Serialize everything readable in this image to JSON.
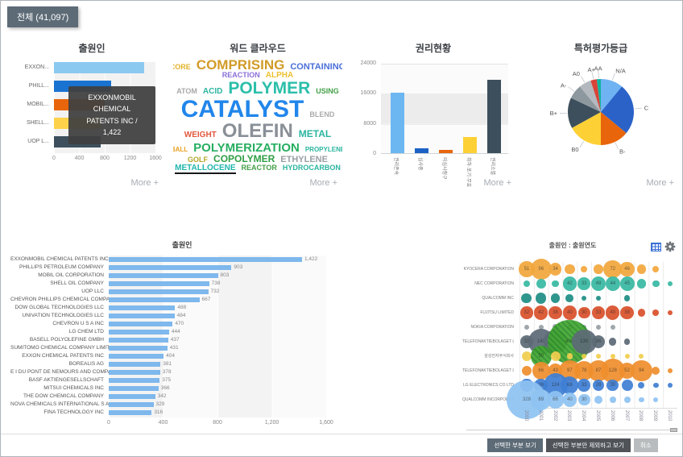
{
  "tab_label": "전체 (41,097)",
  "more_label": "More +",
  "tooltip_lines": [
    "EXXONMOBIL",
    "CHEMICAL",
    "PATENTS INC /",
    "1,422"
  ],
  "buttons": [
    "선택한 부분 보기",
    "선택한 부분만 제외하고 보기",
    "취소"
  ],
  "icons": {
    "table": "table-icon",
    "gear": "gear-icon"
  },
  "word_cloud": {
    "title": "워드 클라우드",
    "lines": [
      [
        {
          "text": "CORE",
          "size": 9,
          "color": "#e3b229"
        },
        {
          "text": "COMPRISING",
          "size": 17,
          "color": "#d29b28"
        },
        {
          "text": "CONTAINING",
          "size": 11,
          "color": "#4a6fd8"
        }
      ],
      [
        {
          "text": "REACTION",
          "size": 9,
          "color": "#8a6fd8"
        },
        {
          "text": "ALPHA",
          "size": 10,
          "color": "#eec131"
        }
      ],
      [
        {
          "text": "ATOM",
          "size": 9,
          "color": "#a8a8a8"
        },
        {
          "text": "ACID",
          "size": 10,
          "color": "#2bb5a0"
        },
        {
          "text": "POLYMER",
          "size": 21,
          "color": "#2bbfa9"
        },
        {
          "text": "USING",
          "size": 9,
          "color": "#43a047"
        }
      ],
      [
        {
          "text": "CATALYST",
          "size": 30,
          "color": "#2186eb"
        },
        {
          "text": "BLEND",
          "size": 9,
          "color": "#ababab"
        }
      ],
      [
        {
          "text": "WEIGHT",
          "size": 10,
          "color": "#e2573d"
        },
        {
          "text": "OLEFIN",
          "size": 24,
          "color": "#8a9097"
        },
        {
          "text": "METAL",
          "size": 12,
          "color": "#2bb5a0"
        }
      ],
      [
        {
          "text": "BALL",
          "size": 8,
          "color": "#e8a020"
        },
        {
          "text": "POLYMERIZATION",
          "size": 15,
          "color": "#27ae60"
        },
        {
          "text": "PROPYLENE",
          "size": 8,
          "color": "#2bb5a0"
        }
      ],
      [
        {
          "text": "GOLF",
          "size": 9,
          "color": "#b5a52a"
        },
        {
          "text": "COPOLYMER",
          "size": 12,
          "color": "#2e9e44"
        },
        {
          "text": "ETHYLENE",
          "size": 11,
          "color": "#9aa0a6"
        }
      ],
      [
        {
          "text": "METALLOCENE",
          "size": 10,
          "color": "#1fb5ad",
          "underline": true
        },
        {
          "text": "REACTOR",
          "size": 9,
          "color": "#43a047"
        },
        {
          "text": "HYDROCARBON",
          "size": 9,
          "color": "#2bb5a0"
        }
      ]
    ]
  },
  "chart_data": [
    {
      "id": "applicant_mini",
      "type": "bar",
      "orientation": "horizontal",
      "title": "출원인",
      "categories": [
        "EXXON...",
        "PHILL...",
        "MOBIL...",
        "SHELL...",
        "UOP L..."
      ],
      "values": [
        1422,
        903,
        803,
        738,
        732
      ],
      "colors": [
        "#8cc9f0",
        "#1a73d1",
        "#e8650c",
        "#fdd24a",
        "#3d4f5c"
      ],
      "xticks": [
        "0",
        "400",
        "800",
        "1200",
        "1600"
      ],
      "xlim": [
        0,
        1600
      ],
      "grid": true
    },
    {
      "id": "rights",
      "type": "bar",
      "orientation": "vertical",
      "title": "권리현황",
      "categories": [
        "권리존속",
        "심사중",
        "미심사청구",
        "취하·포기·무효",
        "권리소멸"
      ],
      "values": [
        16000,
        1200,
        900,
        4300,
        19600
      ],
      "colors": [
        "#6cb6f2",
        "#1b62c4",
        "#e8650c",
        "#fdd035",
        "#3d4f5c"
      ],
      "yticks": [
        "0",
        "8000",
        "16000",
        "24000"
      ],
      "ylim": [
        0,
        24000
      ],
      "grid": true
    },
    {
      "id": "grade",
      "type": "pie",
      "title": "특허평가등급",
      "slices": [
        {
          "label": "N/A",
          "value": 11,
          "color": "#6fb3f2"
        },
        {
          "label": "C",
          "value": 25,
          "color": "#2a62c8"
        },
        {
          "label": "B-",
          "value": 14,
          "color": "#e8650c"
        },
        {
          "label": "B0",
          "value": 17,
          "color": "#fdd035"
        },
        {
          "label": "B+",
          "value": 15,
          "color": "#3d4f5c"
        },
        {
          "label": "A-",
          "value": 7,
          "color": "#8d979e"
        },
        {
          "label": "A0",
          "value": 6,
          "color": "#b3b9be"
        },
        {
          "label": "A+",
          "value": 3,
          "color": "#d84338"
        },
        {
          "label": "AA",
          "value": 2,
          "color": "#0db5a0"
        }
      ]
    },
    {
      "id": "applicant_large",
      "type": "bar",
      "orientation": "horizontal",
      "title": "출원인",
      "categories": [
        "EXXONMOBIL CHEMICAL PATENTS INC",
        "PHILLIPS PETROLEUM COMPANY",
        "MOBIL OIL CORPORATION",
        "SHELL OIL COMPANY",
        "UOP LLC",
        "CHEVRON PHILLIPS CHEMICAL COMPANY LP",
        "DOW GLOBAL TECHNOLOGIES LLC",
        "UNIVATION TECHNOLOGIES LLC",
        "CHEVRON U S A INC",
        "LG CHEM LTD",
        "BASELL POLYOLEFINE GMBH",
        "SUMITOMO CHEMICAL COMPANY LIMITED",
        "EXXON CHEMICAL PATENTS INC",
        "BOREALIS AG",
        "E I DU PONT DE NEMOURS AND COMPANY",
        "BASF AKTIENGESELLSCHAFT",
        "MITSUI CHEMICALS INC",
        "THE DOW CHEMICAL COMPANY",
        "NOVA CHEMICALS INTERNATIONAL S A",
        "FINA TECHNOLOGY INC"
      ],
      "values": [
        1422,
        903,
        803,
        738,
        732,
        667,
        488,
        484,
        470,
        444,
        437,
        431,
        404,
        381,
        378,
        375,
        366,
        342,
        329,
        316
      ],
      "bar_color": "#7eb8ec",
      "xticks": [
        "0",
        "400",
        "800",
        "1,200",
        "1,600"
      ],
      "xlim": [
        0,
        1600
      ],
      "grid": true
    },
    {
      "id": "applicant_year",
      "type": "bubble",
      "title": "출원인 : 출원연도",
      "x": [
        "2000",
        "2001",
        "2002",
        "2003",
        "2004",
        "2005",
        "2006",
        "2007",
        "2008",
        "2009",
        "2010"
      ],
      "hatch_color": "#43a832",
      "series": [
        {
          "name": "KYOCERA CORPORATION",
          "color": "#f2a73d",
          "values": [
            51,
            96,
            34,
            22,
            9,
            18,
            72,
            46,
            19,
            9,
            null
          ],
          "hatch": []
        },
        {
          "name": "NEC CORPORATION",
          "color": "#38b9a2",
          "values": [
            9,
            20,
            9,
            42,
            33,
            48,
            44,
            45,
            19,
            10,
            4
          ],
          "hatch": []
        },
        {
          "name": "QUALCOMM INC",
          "color": "#1f8e85",
          "values": [
            23,
            25,
            18,
            13,
            6,
            5,
            null,
            7,
            null,
            null,
            null
          ],
          "hatch": []
        },
        {
          "name": "FUJITSU LIMITED",
          "color": "#d9512c",
          "values": [
            32,
            42,
            38,
            40,
            30,
            33,
            40,
            38,
            13,
            8,
            5
          ],
          "hatch": []
        },
        {
          "name": "NOKIA CORPORATION",
          "color": "#98a0a6",
          "values": [
            6,
            5,
            8,
            6,
            5,
            4,
            4,
            null,
            null,
            null,
            null
          ],
          "hatch": []
        },
        {
          "name": "TELEFONAKTIEBOLAGET L M E.",
          "color": "#5d6b77",
          "values": [
            33,
            140,
            120,
            400,
            130,
            36,
            12,
            7,
            null,
            null,
            null
          ],
          "hatch": [
            3
          ]
        },
        {
          "name": "삼성전자주식회사",
          "color": "#f1ce4e",
          "values": [
            20,
            90,
            20,
            7,
            6,
            5,
            5,
            4,
            5,
            null,
            null
          ],
          "hatch": [
            1
          ]
        },
        {
          "name": "TELEFONAKTIEBOLAGET LM ER.",
          "color": "#ef8f2e",
          "values": [
            20,
            66,
            43,
            97,
            78,
            87,
            128,
            52,
            94,
            14,
            4
          ],
          "hatch": []
        },
        {
          "name": "LG ELECTRONICS CO LTD",
          "color": "#3f7fd4",
          "values": [
            32,
            38,
            124,
            68,
            33,
            28,
            30,
            26,
            9,
            6,
            5
          ],
          "hatch": []
        },
        {
          "name": "QUALCOMM INCORPORATED",
          "color": "#8fc3f2",
          "values": [
            328,
            89,
            66,
            40,
            30,
            16,
            8,
            9,
            6,
            5,
            null
          ],
          "hatch": []
        }
      ]
    }
  ]
}
